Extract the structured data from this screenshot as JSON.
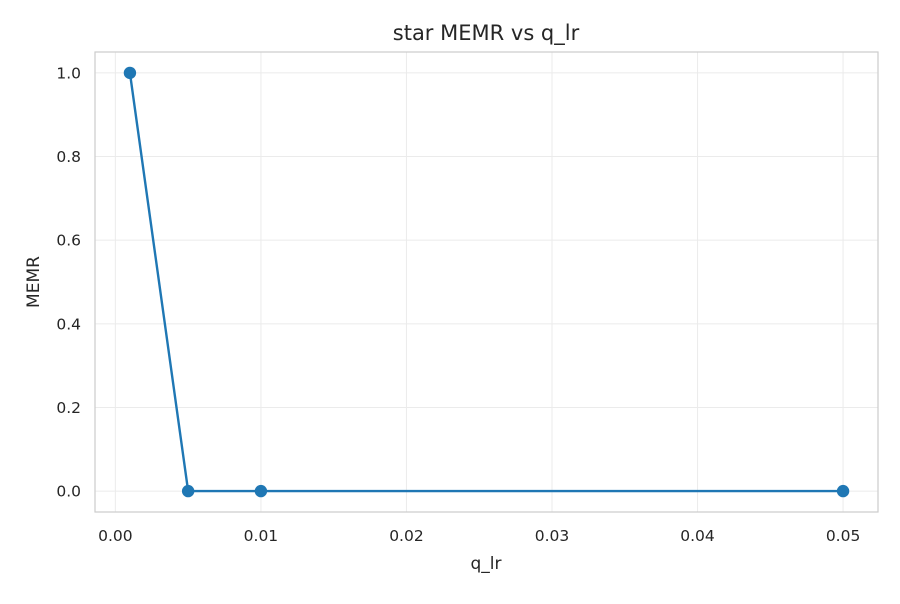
{
  "chart_data": {
    "type": "line",
    "title": "star MEMR vs q_lr",
    "xlabel": "q_lr",
    "ylabel": "MEMR",
    "x": [
      0.001,
      0.005,
      0.01,
      0.05
    ],
    "series": [
      {
        "values": [
          1.0,
          0.0,
          0.0,
          0.0
        ]
      }
    ],
    "xlim": [
      -0.0014,
      0.0524
    ],
    "ylim": [
      -0.05,
      1.05
    ],
    "xticks": [
      0.0,
      0.01,
      0.02,
      0.03,
      0.04,
      0.05
    ],
    "xtick_labels": [
      "0.00",
      "0.01",
      "0.02",
      "0.03",
      "0.04",
      "0.05"
    ],
    "yticks": [
      0.0,
      0.2,
      0.4,
      0.6,
      0.8,
      1.0
    ],
    "ytick_labels": [
      "0.0",
      "0.2",
      "0.4",
      "0.6",
      "0.8",
      "1.0"
    ],
    "grid": true,
    "marker": "circle",
    "color": "#1f77b4",
    "legend": "none"
  }
}
